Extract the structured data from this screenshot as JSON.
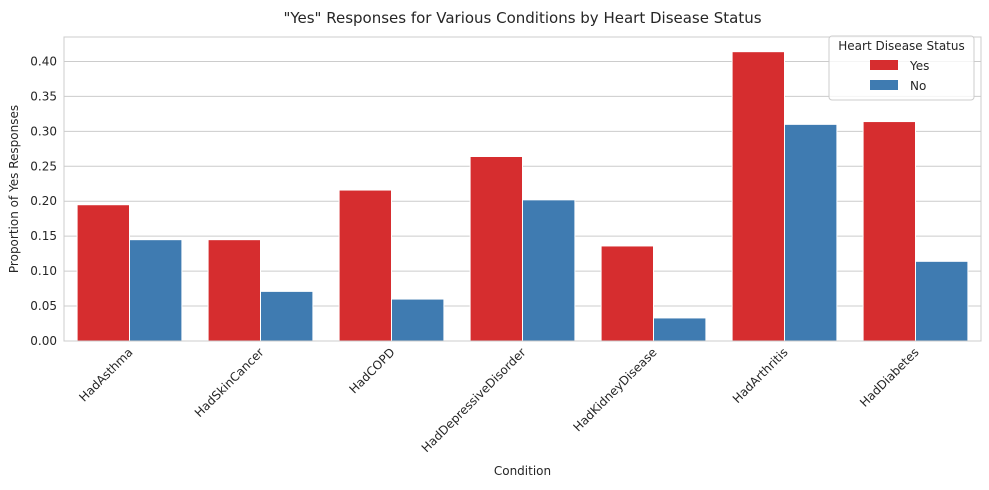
{
  "chart_data": {
    "type": "bar",
    "title": "\"Yes\" Responses for Various Conditions by Heart Disease Status",
    "xlabel": "Condition",
    "ylabel": "Proportion of Yes Responses",
    "ylim": [
      0,
      0.435
    ],
    "yticks": [
      "0.00",
      "0.05",
      "0.10",
      "0.15",
      "0.20",
      "0.25",
      "0.30",
      "0.35",
      "0.40"
    ],
    "ytick_values": [
      0,
      0.05,
      0.1,
      0.15,
      0.2,
      0.25,
      0.3,
      0.35,
      0.4
    ],
    "categories": [
      "HadAsthma",
      "HadSkinCancer",
      "HadCOPD",
      "HadDepressiveDisorder",
      "HadKidneyDisease",
      "HadArthritis",
      "HadDiabetes"
    ],
    "series": [
      {
        "name": "Yes",
        "color": "#d62d2f",
        "values": [
          0.195,
          0.145,
          0.216,
          0.264,
          0.136,
          0.414,
          0.314
        ]
      },
      {
        "name": "No",
        "color": "#3f7bb1",
        "values": [
          0.145,
          0.071,
          0.06,
          0.202,
          0.033,
          0.31,
          0.114
        ]
      }
    ],
    "grid": true,
    "legend": {
      "title": "Heart Disease Status",
      "placement": "top-right"
    }
  }
}
